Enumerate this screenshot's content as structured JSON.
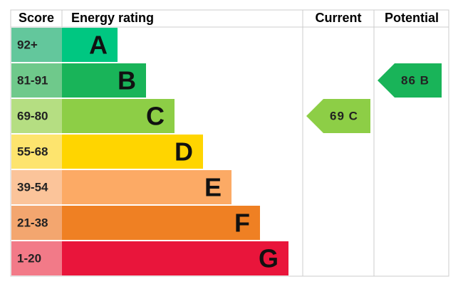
{
  "header": {
    "score": "Score",
    "rating": "Energy rating",
    "current": "Current",
    "potential": "Potential"
  },
  "bands": [
    {
      "score": "92+",
      "letter": "A",
      "score_color": "#63c79c",
      "bar_color": "#00c781"
    },
    {
      "score": "81-91",
      "letter": "B",
      "score_color": "#6fc98b",
      "bar_color": "#19b459"
    },
    {
      "score": "69-80",
      "letter": "C",
      "score_color": "#b5de82",
      "bar_color": "#8dce46"
    },
    {
      "score": "55-68",
      "letter": "D",
      "score_color": "#fde46e",
      "bar_color": "#ffd500"
    },
    {
      "score": "39-54",
      "letter": "E",
      "score_color": "#fbc49a",
      "bar_color": "#fcaa65"
    },
    {
      "score": "21-38",
      "letter": "F",
      "score_color": "#f3a66f",
      "bar_color": "#ef8023"
    },
    {
      "score": "1-20",
      "letter": "G",
      "score_color": "#f27a88",
      "bar_color": "#e9153b"
    }
  ],
  "current": {
    "label": "69 C",
    "band": 2
  },
  "potential": {
    "label": "86 B",
    "band": 1
  }
}
